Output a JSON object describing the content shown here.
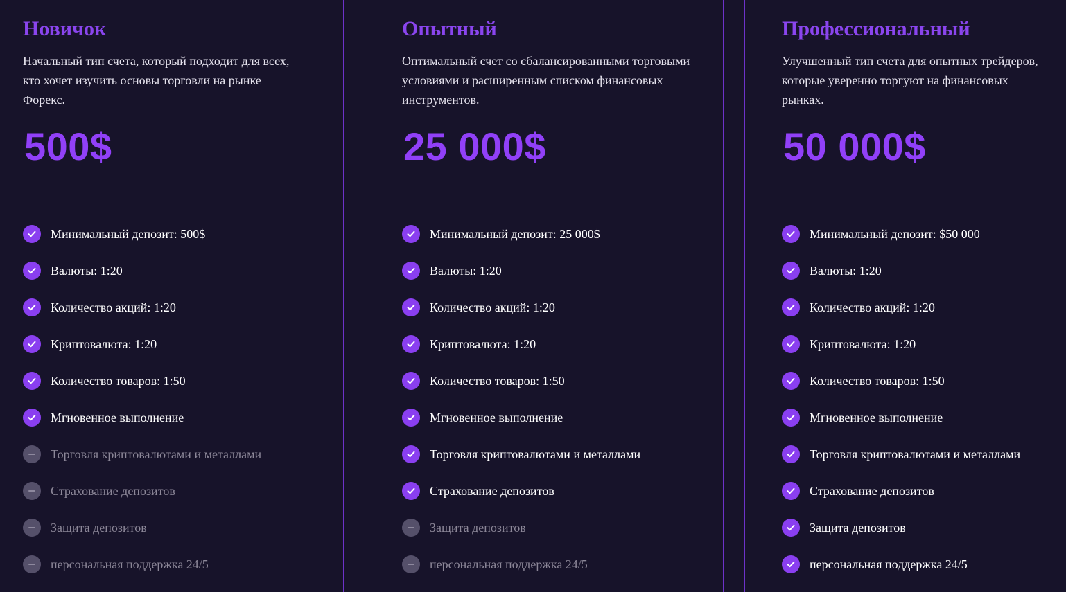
{
  "colors": {
    "background": "#17132a",
    "accent": "#8a3ff0",
    "price": "#9140f8",
    "divider": "#6d32c9",
    "disabled_icon": "#55506a",
    "disabled_text": "#8c8798"
  },
  "icons": {
    "included": "check-circle-icon",
    "excluded": "minus-circle-icon"
  },
  "plans": [
    {
      "title": "Новичок",
      "description": "Начальный тип счета, который подходит для всех, кто хочет изучить основы торговли на рынке Форекс.",
      "price": "500$",
      "features": [
        {
          "label": "Минимальный депозит: 500$",
          "included": true
        },
        {
          "label": "Валюты: 1:20",
          "included": true
        },
        {
          "label": "Количество акций: 1:20",
          "included": true
        },
        {
          "label": "Криптовалюта: 1:20",
          "included": true
        },
        {
          "label": "Количество товаров: 1:50",
          "included": true
        },
        {
          "label": "Мгновенное выполнение",
          "included": true
        },
        {
          "label": "Торговля криптовалютами и металлами",
          "included": false
        },
        {
          "label": "Страхование депозитов",
          "included": false
        },
        {
          "label": "Защита депозитов",
          "included": false
        },
        {
          "label": "персональная поддержка 24/5",
          "included": false
        }
      ]
    },
    {
      "title": "Опытный",
      "description": "Оптимальный счет со сбалансированными торговыми условиями и расширенным списком финансовых инструментов.",
      "price": "25 000$",
      "features": [
        {
          "label": "Минимальный депозит: 25 000$",
          "included": true
        },
        {
          "label": "Валюты: 1:20",
          "included": true
        },
        {
          "label": "Количество акций: 1:20",
          "included": true
        },
        {
          "label": "Криптовалюта: 1:20",
          "included": true
        },
        {
          "label": "Количество товаров: 1:50",
          "included": true
        },
        {
          "label": "Мгновенное выполнение",
          "included": true
        },
        {
          "label": "Торговля криптовалютами и металлами",
          "included": true
        },
        {
          "label": "Страхование депозитов",
          "included": true
        },
        {
          "label": "Защита депозитов",
          "included": false
        },
        {
          "label": "персональная поддержка 24/5",
          "included": false
        }
      ]
    },
    {
      "title": "Профессиональный",
      "description": "Улучшенный тип счета для опытных трейдеров, которые уверенно торгуют на финансовых рынках.",
      "price": "50 000$",
      "features": [
        {
          "label": "Минимальный депозит: $50 000",
          "included": true
        },
        {
          "label": "Валюты: 1:20",
          "included": true
        },
        {
          "label": "Количество акций: 1:20",
          "included": true
        },
        {
          "label": "Криптовалюта: 1:20",
          "included": true
        },
        {
          "label": "Количество товаров: 1:50",
          "included": true
        },
        {
          "label": "Мгновенное выполнение",
          "included": true
        },
        {
          "label": "Торговля криптовалютами и металлами",
          "included": true
        },
        {
          "label": "Страхование депозитов",
          "included": true
        },
        {
          "label": "Защита депозитов",
          "included": true
        },
        {
          "label": "персональная поддержка 24/5",
          "included": true
        }
      ]
    }
  ]
}
